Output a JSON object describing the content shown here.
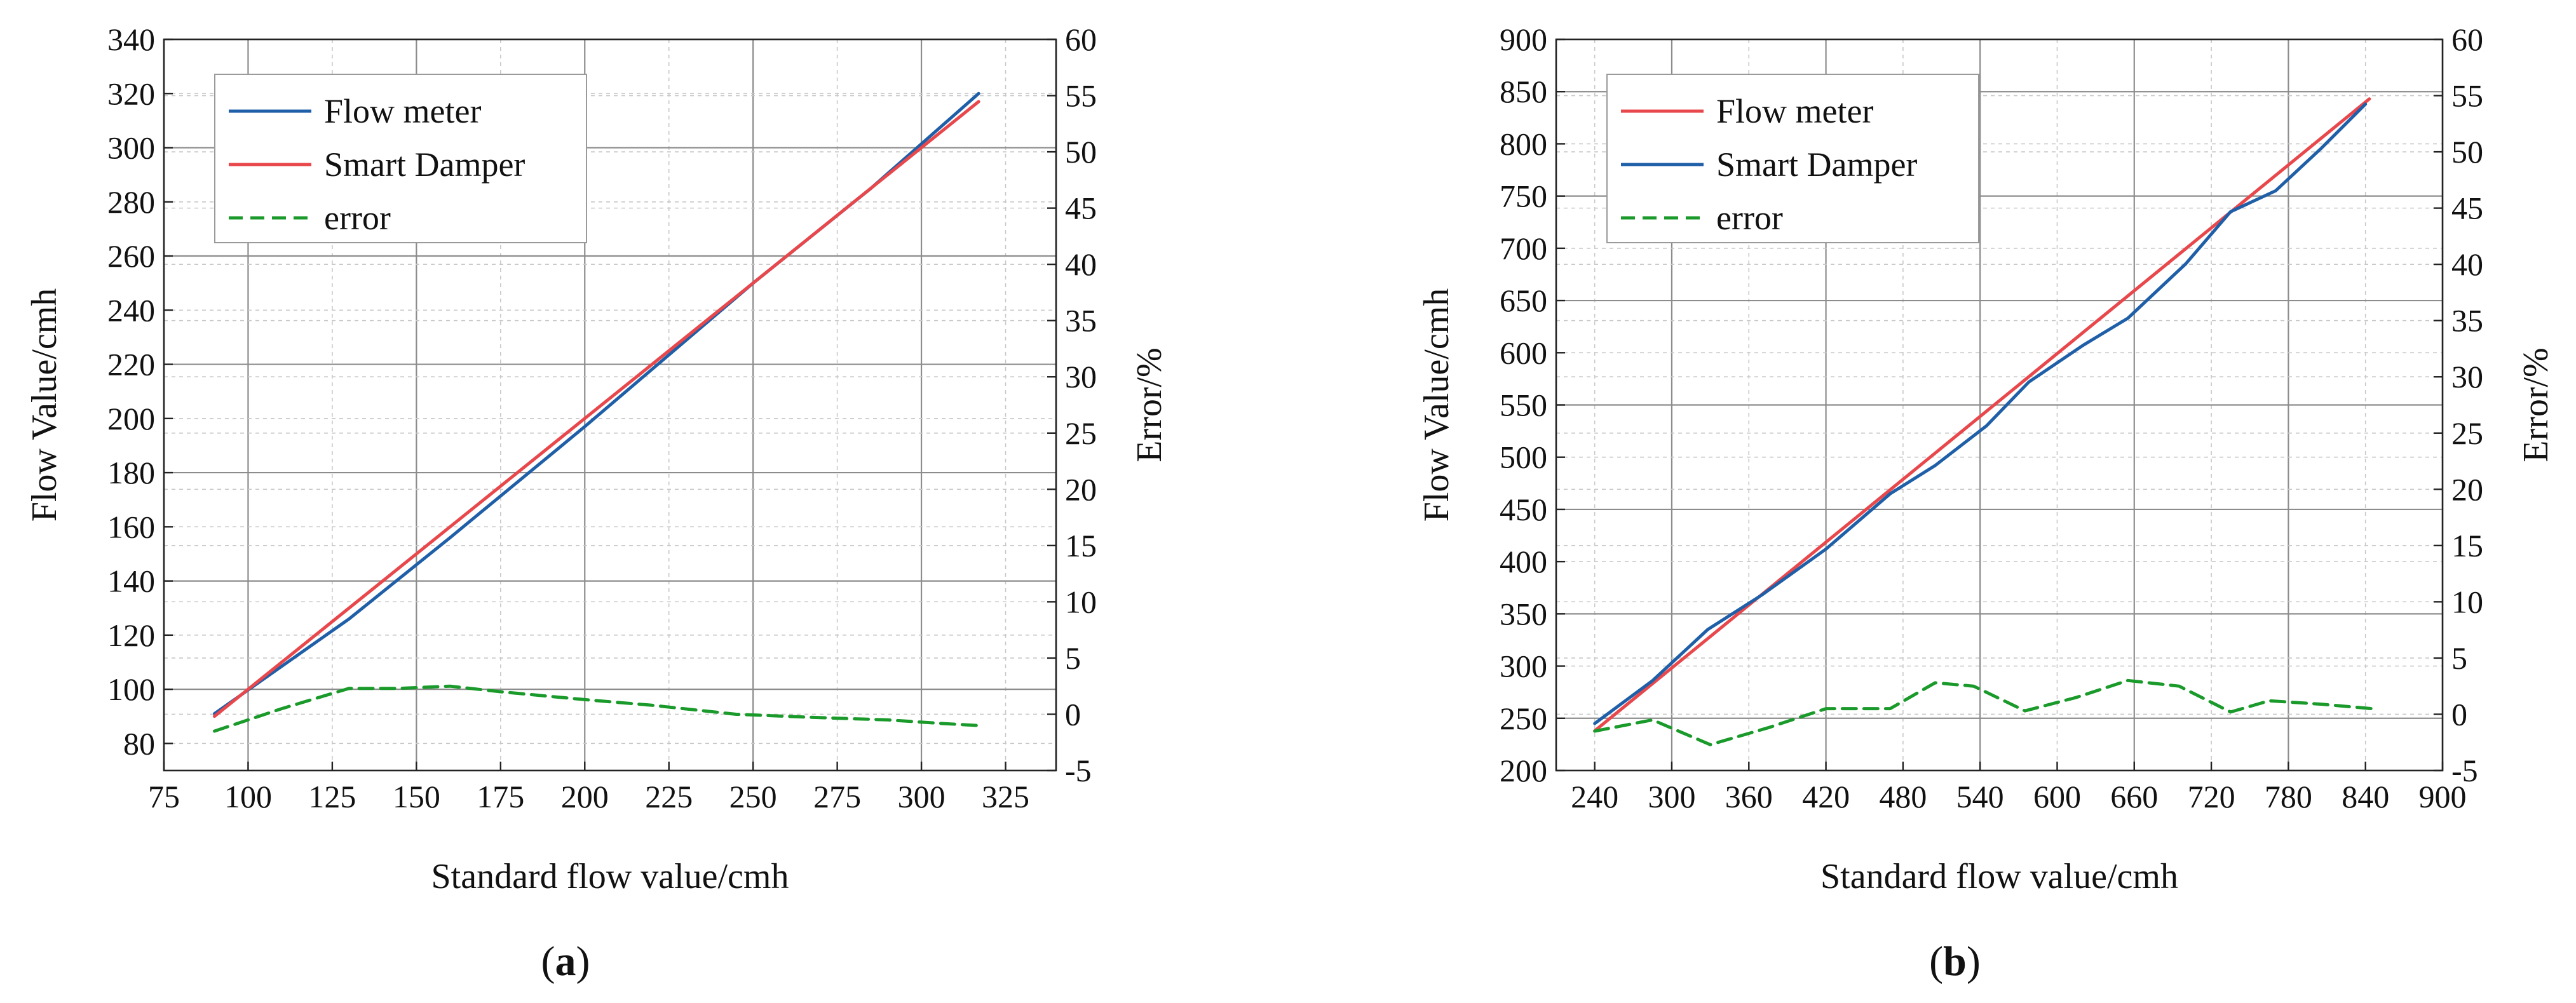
{
  "chart_data": [
    {
      "type": "line",
      "panel_label": "a",
      "xlabel": "Standard flow value/cmh",
      "ylabel": "Flow Value/cmh",
      "y2label": "Error/%",
      "xlim": [
        75,
        340
      ],
      "ylim": [
        70,
        340
      ],
      "y2lim": [
        -5,
        60
      ],
      "xticks": [
        75,
        100,
        125,
        150,
        175,
        200,
        225,
        250,
        275,
        300,
        325
      ],
      "yticks": [
        80,
        100,
        120,
        140,
        160,
        180,
        200,
        220,
        240,
        260,
        280,
        300,
        320,
        340
      ],
      "y2ticks": [
        -5,
        0,
        5,
        10,
        15,
        20,
        25,
        30,
        35,
        40,
        45,
        50,
        55,
        60
      ],
      "legend": {
        "position": "top-left"
      },
      "series": [
        {
          "name": "Flow meter",
          "axis": "left",
          "color": "#1f5fa8",
          "dash": "solid",
          "x": [
            90,
            130,
            160,
            200,
            250,
            285,
            317
          ],
          "y": [
            91,
            126,
            156,
            197,
            250,
            285,
            320
          ]
        },
        {
          "name": "Smart Damper",
          "axis": "left",
          "color": "#e8474b",
          "dash": "solid",
          "x": [
            90,
            317
          ],
          "y": [
            90,
            317
          ]
        },
        {
          "name": "error",
          "axis": "right",
          "color": "#1a9a2a",
          "dash": "dashed",
          "x": [
            90,
            110,
            130,
            145,
            160,
            175,
            200,
            220,
            245,
            270,
            290,
            305,
            317
          ],
          "y": [
            -1.5,
            0.5,
            2.3,
            2.3,
            2.5,
            2.0,
            1.3,
            0.8,
            0.0,
            -0.3,
            -0.5,
            -0.8,
            -1.0
          ]
        }
      ]
    },
    {
      "type": "line",
      "panel_label": "b",
      "xlabel": "Standard flow value/cmh",
      "ylabel": "Flow Value/cmh",
      "y2label": "Error/%",
      "xlim": [
        210,
        900
      ],
      "ylim": [
        200,
        900
      ],
      "y2lim": [
        -5,
        60
      ],
      "xticks": [
        240,
        300,
        360,
        420,
        480,
        540,
        600,
        660,
        720,
        780,
        840,
        900
      ],
      "yticks": [
        200,
        250,
        300,
        350,
        400,
        450,
        500,
        550,
        600,
        650,
        700,
        750,
        800,
        850,
        900
      ],
      "y2ticks": [
        -5,
        0,
        5,
        10,
        15,
        20,
        25,
        30,
        35,
        40,
        45,
        50,
        55,
        60
      ],
      "legend": {
        "position": "top-left"
      },
      "series": [
        {
          "name": "Flow meter",
          "axis": "left",
          "color": "#e8474b",
          "dash": "solid",
          "x": [
            240,
            843
          ],
          "y": [
            238,
            843
          ]
        },
        {
          "name": "Smart Damper",
          "axis": "left",
          "color": "#1f5fa8",
          "dash": "solid",
          "x": [
            240,
            285,
            328,
            370,
            420,
            470,
            505,
            545,
            578,
            620,
            655,
            700,
            735,
            770,
            805,
            840
          ],
          "y": [
            245,
            286,
            335,
            368,
            412,
            465,
            492,
            530,
            572,
            607,
            633,
            685,
            735,
            755,
            795,
            838
          ]
        },
        {
          "name": "error",
          "axis": "right",
          "color": "#1a9a2a",
          "dash": "dashed",
          "x": [
            240,
            285,
            330,
            375,
            420,
            470,
            505,
            535,
            575,
            615,
            655,
            695,
            735,
            765,
            805,
            845
          ],
          "y": [
            -1.5,
            -0.5,
            -2.7,
            -1.2,
            0.5,
            0.5,
            2.8,
            2.5,
            0.3,
            1.5,
            3.0,
            2.5,
            0.2,
            1.2,
            0.9,
            0.5
          ]
        }
      ]
    }
  ]
}
